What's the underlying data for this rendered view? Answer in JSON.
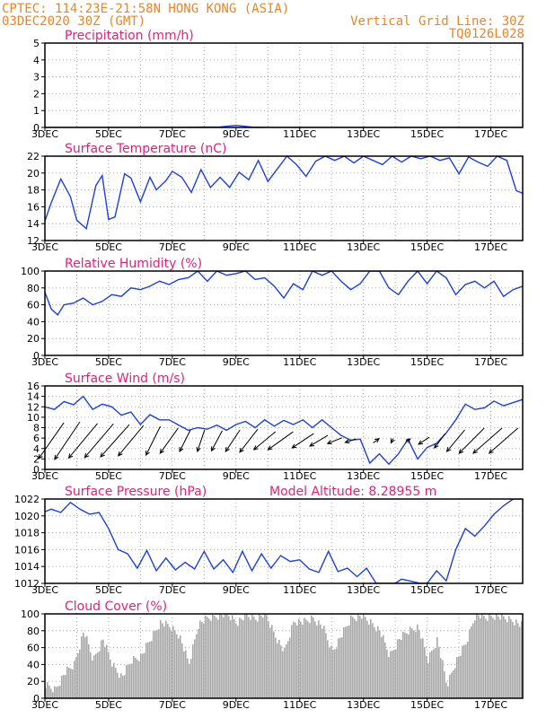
{
  "header": {
    "source_location": "CPTEC:   114:23E-21:58N   HONG KONG (ASIA)",
    "run_time": "03DEC2020 30Z (GMT)",
    "grid_note": "Vertical Grid Line: 30Z",
    "model_id": "TQ0126L028",
    "model_altitude": "Model Altitude: 8.28955 m"
  },
  "x_ticks": [
    "3DEC",
    "5DEC",
    "7DEC",
    "9DEC",
    "11DEC",
    "13DEC",
    "15DEC",
    "17DEC"
  ],
  "chart_data": [
    {
      "id": "precip",
      "type": "line",
      "title": "Precipitation (mm/h)",
      "ylim": [
        0,
        5
      ],
      "yticks": [
        0,
        1,
        2,
        3,
        4,
        5
      ],
      "grid": true,
      "series": [
        {
          "x": [
            3,
            4,
            5,
            6,
            7,
            8,
            8.5,
            9,
            9.5,
            10,
            11,
            12,
            13,
            14,
            15,
            16,
            17,
            18
          ],
          "values": [
            0,
            0,
            0,
            0,
            0,
            0.02,
            0.03,
            0.12,
            0.02,
            0,
            0,
            0,
            0,
            0,
            0,
            0,
            0,
            0
          ]
        }
      ]
    },
    {
      "id": "temp",
      "type": "line",
      "title": "Surface Temperature (nC)",
      "ylim": [
        12,
        22
      ],
      "yticks": [
        12,
        14,
        16,
        18,
        20,
        22
      ],
      "grid": true,
      "series": [
        {
          "x": [
            3,
            3.2,
            3.5,
            3.8,
            4,
            4.3,
            4.6,
            4.8,
            5,
            5.2,
            5.5,
            5.7,
            6,
            6.3,
            6.5,
            6.8,
            7,
            7.3,
            7.6,
            7.9,
            8.2,
            8.5,
            8.8,
            9.1,
            9.4,
            9.7,
            10,
            10.3,
            10.6,
            10.9,
            11.2,
            11.5,
            11.8,
            12.1,
            12.4,
            12.7,
            13,
            13.3,
            13.6,
            13.9,
            14.2,
            14.5,
            14.8,
            15.1,
            15.4,
            15.7,
            16,
            16.3,
            16.6,
            16.9,
            17.2,
            17.5,
            17.8,
            18
          ],
          "values": [
            14.3,
            16.5,
            19.3,
            17.2,
            14.4,
            13.4,
            18.5,
            19.7,
            14.5,
            14.8,
            19.9,
            19.4,
            16.6,
            19.5,
            18.0,
            19.1,
            20.2,
            19.5,
            17.7,
            20.4,
            18.3,
            19.5,
            18.3,
            20.1,
            19.2,
            21.5,
            19.0,
            20.5,
            22,
            21,
            19.6,
            21.4,
            22,
            21.5,
            22,
            21.2,
            22,
            21.5,
            21,
            22,
            21.3,
            22,
            21.7,
            22,
            21.5,
            21.8,
            19.9,
            21.9,
            21.3,
            20.8,
            22,
            21.5,
            17.9,
            17.6
          ]
        }
      ]
    },
    {
      "id": "rh",
      "type": "line",
      "title": "Relative Humidity (%)",
      "ylim": [
        0,
        100
      ],
      "yticks": [
        0,
        20,
        40,
        60,
        80,
        100
      ],
      "grid": true,
      "series": [
        {
          "x": [
            3,
            3.2,
            3.4,
            3.6,
            3.9,
            4.2,
            4.5,
            4.8,
            5.1,
            5.4,
            5.7,
            6,
            6.3,
            6.6,
            6.9,
            7.2,
            7.5,
            7.8,
            8.1,
            8.4,
            8.7,
            9,
            9.3,
            9.6,
            9.9,
            10.2,
            10.5,
            10.8,
            11.1,
            11.4,
            11.7,
            12,
            12.3,
            12.6,
            12.9,
            13.2,
            13.5,
            13.8,
            14.1,
            14.4,
            14.7,
            15,
            15.3,
            15.6,
            15.9,
            16.2,
            16.5,
            16.8,
            17.1,
            17.4,
            17.7,
            18
          ],
          "values": [
            75,
            55,
            48,
            60,
            62,
            68,
            60,
            64,
            72,
            70,
            80,
            78,
            82,
            88,
            84,
            90,
            92,
            100,
            88,
            100,
            95,
            97,
            100,
            90,
            92,
            82,
            68,
            85,
            78,
            100,
            95,
            100,
            88,
            78,
            85,
            100,
            100,
            80,
            72,
            88,
            100,
            85,
            100,
            92,
            72,
            84,
            88,
            80,
            88,
            70,
            78,
            82
          ]
        }
      ]
    },
    {
      "id": "wind",
      "type": "line",
      "title": "Surface Wind (m/s)",
      "ylim": [
        0,
        16
      ],
      "yticks": [
        0,
        2,
        4,
        6,
        8,
        10,
        12,
        14,
        16
      ],
      "grid": true,
      "series": [
        {
          "x": [
            3,
            3.3,
            3.6,
            3.9,
            4.2,
            4.5,
            4.8,
            5.1,
            5.4,
            5.7,
            6,
            6.3,
            6.6,
            6.9,
            7.2,
            7.5,
            7.8,
            8.1,
            8.4,
            8.7,
            9,
            9.3,
            9.6,
            9.9,
            10.2,
            10.5,
            10.8,
            11.1,
            11.4,
            11.7,
            12,
            12.3,
            12.6,
            12.9,
            13.2,
            13.5,
            13.8,
            14.1,
            14.4,
            14.7,
            15,
            15.3,
            15.6,
            15.9,
            16.2,
            16.5,
            16.8,
            17.1,
            17.4,
            17.7,
            18
          ],
          "values": [
            12,
            11.5,
            13,
            12.4,
            14,
            11.5,
            12.5,
            12,
            10.4,
            11,
            8.6,
            10.5,
            9.5,
            9.5,
            8.5,
            7.5,
            8,
            7.7,
            8.5,
            7.5,
            8.6,
            9.2,
            8,
            9.5,
            8.3,
            9.4,
            8.6,
            9.5,
            8,
            9.5,
            8,
            6.5,
            5.6,
            5.8,
            1.2,
            3,
            1,
            3,
            5.8,
            2,
            4.2,
            5,
            7,
            9.5,
            12.5,
            11.5,
            11.8,
            13.1,
            12.2,
            12.8,
            13.4
          ]
        }
      ],
      "vectors": [
        {
          "day": 3.2,
          "u": 3.5,
          "v": 5.0
        },
        {
          "day": 3.7,
          "u": 3.5,
          "v": 5.2
        },
        {
          "day": 4.2,
          "u": 4,
          "v": 4.8
        },
        {
          "day": 4.7,
          "u": 4,
          "v": 4.7
        },
        {
          "day": 5.2,
          "u": 4,
          "v": 4.5
        },
        {
          "day": 5.7,
          "u": 3.5,
          "v": 4.2
        },
        {
          "day": 6.4,
          "u": 2,
          "v": 4.0
        },
        {
          "day": 6.9,
          "u": 2.5,
          "v": 3.5
        },
        {
          "day": 7.4,
          "u": 1.5,
          "v": 3.0
        },
        {
          "day": 7.9,
          "u": 1,
          "v": 3.0
        },
        {
          "day": 8.4,
          "u": 1.5,
          "v": 2.8
        },
        {
          "day": 8.9,
          "u": 2,
          "v": 3.0
        },
        {
          "day": 9.4,
          "u": 2.5,
          "v": 3.2
        },
        {
          "day": 9.9,
          "u": 3,
          "v": 2.5
        },
        {
          "day": 10.4,
          "u": 3.5,
          "v": 2.5
        },
        {
          "day": 11.1,
          "u": 3,
          "v": 2.0
        },
        {
          "day": 11.6,
          "u": 2.5,
          "v": 1.5
        },
        {
          "day": 12.1,
          "u": 2,
          "v": 0.8
        },
        {
          "day": 12.6,
          "u": 1.5,
          "v": 0.5
        },
        {
          "day": 13.4,
          "u": -0.8,
          "v": -0.6
        },
        {
          "day": 13.9,
          "u": 0.3,
          "v": 0.6
        },
        {
          "day": 14.4,
          "u": -0.6,
          "v": -0.5
        },
        {
          "day": 14.9,
          "u": 1.5,
          "v": 1.0
        },
        {
          "day": 15.4,
          "u": 1.5,
          "v": 2.0
        },
        {
          "day": 15.9,
          "u": 2.5,
          "v": 3.0
        },
        {
          "day": 16.4,
          "u": 3.5,
          "v": 3.5
        },
        {
          "day": 16.9,
          "u": 4,
          "v": 3.5
        },
        {
          "day": 17.4,
          "u": 4,
          "v": 3.5
        }
      ]
    },
    {
      "id": "pressure",
      "type": "line",
      "title": "Surface Pressure (hPa)",
      "ylim": [
        1012,
        1022
      ],
      "yticks": [
        1012,
        1014,
        1016,
        1018,
        1020,
        1022
      ],
      "grid": true,
      "series": [
        {
          "x": [
            3,
            3.2,
            3.5,
            3.8,
            4.1,
            4.4,
            4.7,
            5,
            5.3,
            5.6,
            5.9,
            6.2,
            6.5,
            6.8,
            7.1,
            7.4,
            7.7,
            8,
            8.3,
            8.6,
            8.9,
            9.2,
            9.5,
            9.8,
            10.1,
            10.4,
            10.7,
            11,
            11.3,
            11.6,
            11.9,
            12.2,
            12.5,
            12.8,
            13.1,
            13.4,
            13.7,
            14,
            14.2,
            14.8,
            15,
            15.3,
            15.6,
            15.9,
            16.2,
            16.5,
            16.8,
            17.1,
            17.4,
            17.7,
            18
          ],
          "values": [
            1020.5,
            1020.8,
            1020.4,
            1021.6,
            1020.8,
            1020.2,
            1020.4,
            1018.5,
            1016,
            1015.5,
            1013.8,
            1015.9,
            1013.5,
            1015,
            1013.6,
            1014.5,
            1013.7,
            1015.8,
            1013.7,
            1014.8,
            1013.3,
            1015.8,
            1013.5,
            1015.5,
            1013.8,
            1015.3,
            1014.6,
            1014.8,
            1013.7,
            1013.3,
            1015.8,
            1013.4,
            1013.8,
            1012.8,
            1013.8,
            1012,
            1012,
            1012,
            1012.5,
            1012,
            1012,
            1013.5,
            1012.3,
            1016,
            1018.5,
            1017.6,
            1018.8,
            1020.2,
            1021.2,
            1022,
            1022
          ]
        }
      ]
    },
    {
      "id": "cloud",
      "type": "area",
      "title": "Cloud Cover (%)",
      "ylim": [
        0,
        100
      ],
      "yticks": [
        0,
        20,
        40,
        60,
        80,
        100
      ],
      "grid": true,
      "series": [
        {
          "x": [
            3,
            3.3,
            3.6,
            3.9,
            4.2,
            4.5,
            4.8,
            5.1,
            5.4,
            5.7,
            6,
            6.3,
            6.6,
            6.9,
            7.2,
            7.5,
            7.8,
            8.1,
            8.4,
            8.7,
            9,
            9.3,
            9.6,
            9.9,
            10.2,
            10.5,
            10.8,
            11.1,
            11.4,
            11.7,
            12,
            12.3,
            12.6,
            12.9,
            13.2,
            13.5,
            13.8,
            14.1,
            14.4,
            14.7,
            15,
            15.3,
            15.6,
            15.9,
            16.2,
            16.5,
            16.8,
            17.1,
            17.4,
            17.7,
            18
          ],
          "values": [
            15,
            10,
            30,
            40,
            80,
            45,
            70,
            40,
            25,
            45,
            50,
            70,
            90,
            85,
            75,
            40,
            88,
            95,
            98,
            100,
            90,
            98,
            95,
            100,
            75,
            55,
            92,
            90,
            95,
            85,
            55,
            75,
            95,
            98,
            90,
            80,
            50,
            70,
            80,
            85,
            45,
            70,
            15,
            45,
            65,
            100,
            95,
            98,
            95,
            92,
            85
          ]
        }
      ]
    }
  ]
}
